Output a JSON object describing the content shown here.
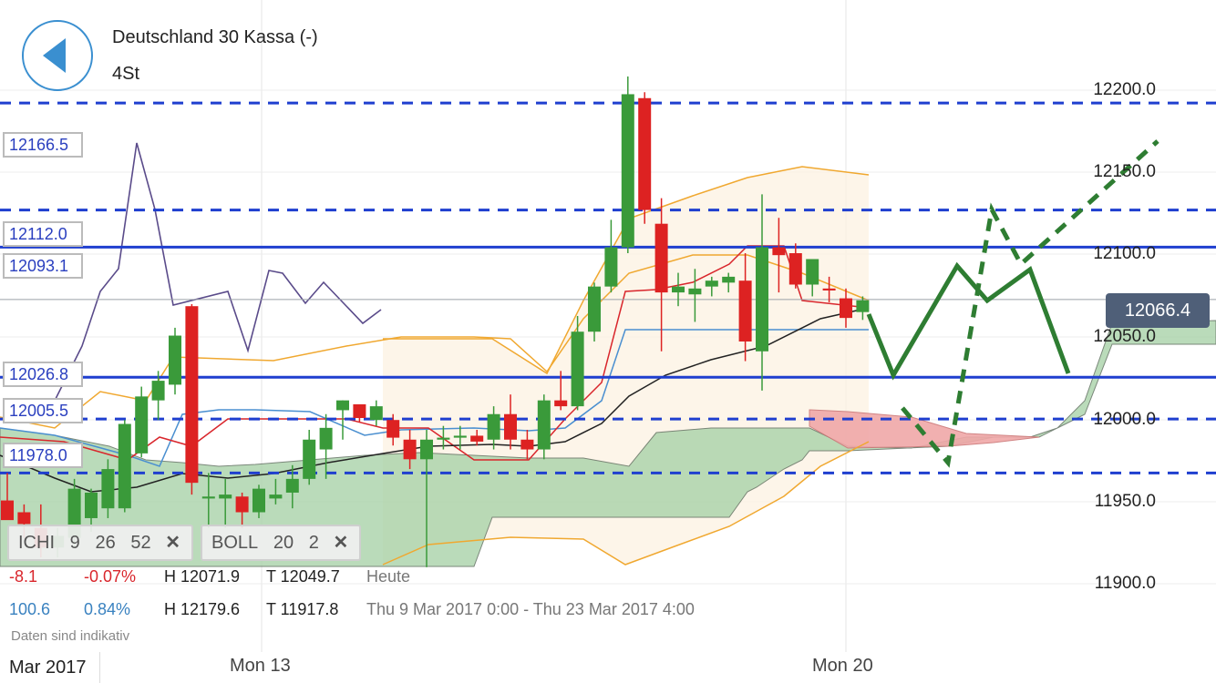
{
  "header": {
    "title": "Deutschland 30 Kassa (-)",
    "timeframe": "4St"
  },
  "current_price": "12066.4",
  "indicators": [
    {
      "name": "ICHI",
      "params": [
        "9",
        "26",
        "52"
      ],
      "close": "✕"
    },
    {
      "name": "BOLL",
      "params": [
        "20",
        "2"
      ],
      "close": "✕"
    }
  ],
  "stats": {
    "row1": {
      "change": "-8.1",
      "pct": "-0.07%",
      "high": "H 12071.9",
      "low": "T 12049.7",
      "period": "Heute"
    },
    "row2": {
      "change": "100.6",
      "pct": "0.84%",
      "high": "H 12179.6",
      "low": "T 11917.8",
      "period": "Thu 9 Mar 2017 0:00 - Thu 23 Mar 2017 4:00"
    }
  },
  "disclaimer": "Daten sind indikativ",
  "x_axis": {
    "month": "Mar 2017",
    "labels": [
      "Mon 13",
      "Mon 20"
    ]
  },
  "colors": {
    "up": "#3a9a3a",
    "down": "#dd2222",
    "level_line": "#1f3fcf",
    "kumo_green": "#a9d3a9",
    "kumo_red": "#f0a8a8",
    "forecast": "#2e7d32",
    "bollinger": "#f0a830"
  },
  "chart_data": {
    "type": "candlestick",
    "y_axis": {
      "ticks": [
        "12200.0",
        "12150.0",
        "12100.0",
        "12050.0",
        "12000.0",
        "11950.0",
        "11900.0"
      ],
      "range": [
        11871,
        12219
      ]
    },
    "horizontal_levels": [
      {
        "label": "12166.5",
        "value": 12166.5,
        "style": "dashed"
      },
      {
        "label": "12112.0",
        "value": 12112.0,
        "style": "dashed"
      },
      {
        "label": "12093.1",
        "value": 12093.1,
        "style": "solid"
      },
      {
        "label": "12026.8",
        "value": 12026.8,
        "style": "solid"
      },
      {
        "label": "12005.5",
        "value": 12005.5,
        "style": "dashed"
      },
      {
        "label": "11978.0",
        "value": 11978.0,
        "style": "dashed"
      }
    ],
    "candles": [
      {
        "o": 11964,
        "h": 11978,
        "l": 11955,
        "c": 11954
      },
      {
        "o": 11958,
        "h": 11962,
        "l": 11945,
        "c": 11952
      },
      {
        "o": 11950,
        "h": 11962,
        "l": 11935,
        "c": 11940
      },
      {
        "o": 11940,
        "h": 11950,
        "l": 11935,
        "c": 11946
      },
      {
        "o": 11945,
        "h": 11975,
        "l": 11940,
        "c": 11970
      },
      {
        "o": 11955,
        "h": 11970,
        "l": 11948,
        "c": 11968
      },
      {
        "o": 11960,
        "h": 11985,
        "l": 11955,
        "c": 11980
      },
      {
        "o": 11960,
        "h": 12005,
        "l": 11958,
        "c": 12003
      },
      {
        "o": 11988,
        "h": 12022,
        "l": 11986,
        "c": 12017
      },
      {
        "o": 12015,
        "h": 12030,
        "l": 12005,
        "c": 12025
      },
      {
        "o": 12023,
        "h": 12052,
        "l": 12018,
        "c": 12048
      },
      {
        "o": 12063,
        "h": 12064,
        "l": 11967,
        "c": 11973
      },
      {
        "o": 11965,
        "h": 11978,
        "l": 11950,
        "c": 11966
      },
      {
        "o": 11965,
        "h": 11975,
        "l": 11950,
        "c": 11967
      },
      {
        "o": 11966,
        "h": 11968,
        "l": 11950,
        "c": 11958
      },
      {
        "o": 11958,
        "h": 11972,
        "l": 11955,
        "c": 11970
      },
      {
        "o": 11965,
        "h": 11975,
        "l": 11962,
        "c": 11967
      },
      {
        "o": 11968,
        "h": 11982,
        "l": 11960,
        "c": 11975
      },
      {
        "o": 11975,
        "h": 12000,
        "l": 11972,
        "c": 11995
      },
      {
        "o": 11990,
        "h": 12008,
        "l": 11975,
        "c": 12001
      },
      {
        "o": 12010,
        "h": 12015,
        "l": 11995,
        "c": 12015
      },
      {
        "o": 12013,
        "h": 12012,
        "l": 12004,
        "c": 12006
      },
      {
        "o": 12005,
        "h": 12015,
        "l": 12002,
        "c": 12012
      },
      {
        "o": 12005,
        "h": 12008,
        "l": 11992,
        "c": 11996
      },
      {
        "o": 11995,
        "h": 12000,
        "l": 11980,
        "c": 11985
      },
      {
        "o": 11985,
        "h": 12000,
        "l": 11930,
        "c": 11995
      },
      {
        "o": 11995,
        "h": 12002,
        "l": 11990,
        "c": 11996
      },
      {
        "o": 11996,
        "h": 12002,
        "l": 11990,
        "c": 11997
      },
      {
        "o": 11997,
        "h": 12000,
        "l": 11992,
        "c": 11994
      },
      {
        "o": 11995,
        "h": 12012,
        "l": 11990,
        "c": 12008
      },
      {
        "o": 12008,
        "h": 12018,
        "l": 11990,
        "c": 11995
      },
      {
        "o": 11995,
        "h": 12000,
        "l": 11985,
        "c": 11990
      },
      {
        "o": 11990,
        "h": 12018,
        "l": 11985,
        "c": 12015
      },
      {
        "o": 12015,
        "h": 12030,
        "l": 12010,
        "c": 12012
      },
      {
        "o": 12012,
        "h": 12058,
        "l": 12010,
        "c": 12050
      },
      {
        "o": 12050,
        "h": 12075,
        "l": 12045,
        "c": 12073
      },
      {
        "o": 12073,
        "h": 12107,
        "l": 12070,
        "c": 12093
      },
      {
        "o": 12093,
        "h": 12180,
        "l": 12090,
        "c": 12171
      },
      {
        "o": 12169,
        "h": 12172,
        "l": 12105,
        "c": 12112
      },
      {
        "o": 12105,
        "h": 12118,
        "l": 12040,
        "c": 12070
      },
      {
        "o": 12070,
        "h": 12080,
        "l": 12063,
        "c": 12073
      },
      {
        "o": 12069,
        "h": 12082,
        "l": 12055,
        "c": 12072
      },
      {
        "o": 12073,
        "h": 12078,
        "l": 12068,
        "c": 12076
      },
      {
        "o": 12075,
        "h": 12080,
        "l": 12070,
        "c": 12078
      },
      {
        "o": 12076,
        "h": 12090,
        "l": 12035,
        "c": 12045
      },
      {
        "o": 12040,
        "h": 12120,
        "l": 12020,
        "c": 12093
      },
      {
        "o": 12093,
        "h": 12108,
        "l": 12070,
        "c": 12089
      },
      {
        "o": 12090,
        "h": 12095,
        "l": 12072,
        "c": 12074
      },
      {
        "o": 12074,
        "h": 12085,
        "l": 12068,
        "c": 12087
      },
      {
        "o": 12072,
        "h": 12078,
        "l": 12065,
        "c": 12071
      },
      {
        "o": 12067,
        "h": 12072,
        "l": 12052,
        "c": 12057
      },
      {
        "o": 12060,
        "h": 12068,
        "l": 12056,
        "c": 12066
      }
    ]
  }
}
